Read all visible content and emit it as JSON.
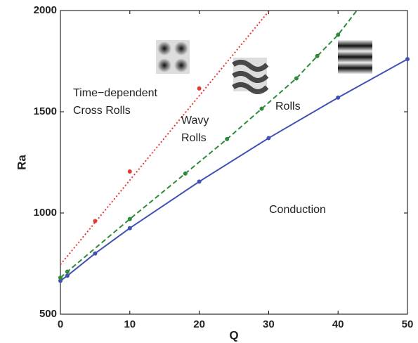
{
  "chart_data": {
    "type": "scatter",
    "x_label": "Q",
    "y_label": "Ra",
    "xlim": [
      0,
      50
    ],
    "ylim": [
      500,
      2000
    ],
    "xticks": [
      0,
      10,
      20,
      30,
      40,
      50
    ],
    "yticks": [
      500,
      1000,
      1500,
      2000
    ],
    "series": [
      {
        "color": "#3f51b5",
        "line_style": "solid",
        "x": [
          0,
          1,
          5,
          10,
          20,
          30,
          40,
          50
        ],
        "values": [
          665,
          690,
          800,
          925,
          1155,
          1370,
          1570,
          1760
        ],
        "line": {
          "x": [
            0,
            1,
            5,
            10,
            20,
            30,
            40,
            50
          ],
          "values": [
            665,
            690,
            800,
            925,
            1155,
            1370,
            1570,
            1760
          ]
        }
      },
      {
        "color": "#2e8b3a",
        "line_style": "dashed",
        "x": [
          0,
          1,
          10,
          18,
          24,
          29,
          34,
          37,
          40
        ],
        "values": [
          680,
          710,
          970,
          1195,
          1365,
          1515,
          1665,
          1775,
          1880
        ],
        "line": {
          "x": [
            0,
            1,
            10,
            18,
            24,
            29,
            34,
            37,
            40,
            42.7
          ],
          "values": [
            680,
            710,
            970,
            1195,
            1365,
            1515,
            1665,
            1775,
            1880,
            2000
          ]
        }
      },
      {
        "color": "#e53935",
        "line_style": "dotted",
        "x": [
          5,
          10,
          20
        ],
        "values": [
          960,
          1205,
          1615
        ],
        "line": {
          "x": [
            0,
            30.1
          ],
          "values": [
            745,
            2000
          ]
        }
      }
    ],
    "annotations": [
      "Time−dependent",
      "Cross Rolls",
      "Wavy",
      "Rolls",
      "Rolls",
      "Conduction"
    ]
  }
}
